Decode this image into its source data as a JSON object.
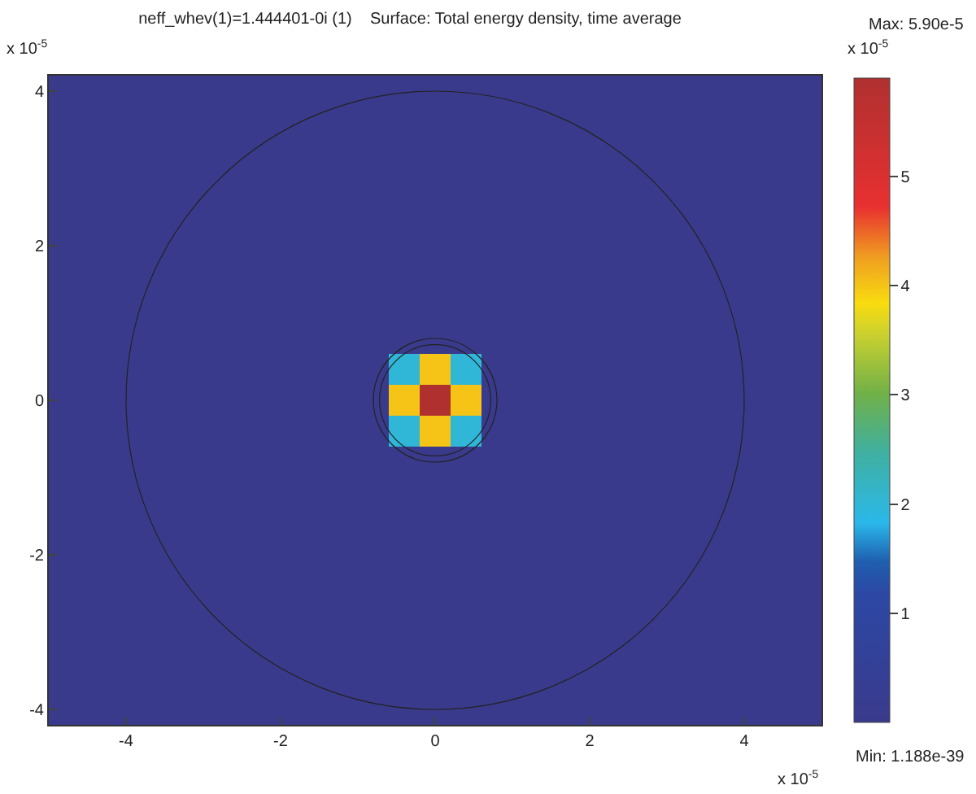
{
  "chart_data": {
    "type": "heatmap",
    "title": "neff_whev(1)=1.444401-0i (1)    Surface: Total energy density, time average",
    "categories": [
      null,
      null,
      "-4",
      null,
      null,
      null,
      null,
      "-2",
      null,
      null,
      null,
      null,
      "0",
      null,
      null,
      null,
      null,
      "2",
      null,
      null,
      null,
      null,
      "4",
      null,
      null
    ],
    "y_categories": [
      "4",
      null,
      null,
      null,
      null,
      "2",
      null,
      null,
      null,
      null,
      "0",
      null,
      null,
      null,
      null,
      "-2",
      null,
      null,
      null,
      null,
      "-4"
    ],
    "cells": [
      [
        0,
        0,
        0,
        0,
        0,
        0,
        0,
        0,
        0,
        0,
        0,
        0,
        0,
        0,
        0,
        0,
        0,
        0,
        0,
        0,
        0,
        0,
        0,
        0,
        0
      ],
      [
        0,
        0,
        0,
        0,
        0,
        0,
        0,
        0,
        0,
        0,
        0,
        0,
        0,
        0,
        0,
        0,
        0,
        0,
        0,
        0,
        0,
        0,
        0,
        0,
        0
      ],
      [
        0,
        0,
        0,
        0,
        0,
        0,
        0,
        0,
        0,
        0,
        0,
        0,
        0,
        0,
        0,
        0,
        0,
        0,
        0,
        0,
        0,
        0,
        0,
        0,
        0
      ],
      [
        0,
        0,
        0,
        0,
        0,
        0,
        0,
        0,
        0,
        0,
        0,
        0,
        0,
        0,
        0,
        0,
        0,
        0,
        0,
        0,
        0,
        0,
        0,
        0,
        0
      ],
      [
        0,
        0,
        0,
        0,
        0,
        0,
        0,
        0,
        0,
        0,
        0,
        0,
        0,
        0,
        0,
        0,
        0,
        0,
        0,
        0,
        0,
        0,
        0,
        0,
        0
      ],
      [
        0,
        0,
        0,
        0,
        0,
        0,
        0,
        0,
        0,
        0,
        0,
        0,
        0,
        0,
        0,
        0,
        0,
        0,
        0,
        0,
        0,
        0,
        0,
        0,
        0
      ],
      [
        0,
        0,
        0,
        0,
        0,
        0,
        0,
        0,
        0,
        0,
        0,
        0,
        0,
        0,
        0,
        0,
        0,
        0,
        0,
        0,
        0,
        0,
        0,
        0,
        0
      ],
      [
        0,
        0,
        0,
        0,
        0,
        0,
        0,
        0,
        0,
        0,
        0,
        0,
        0,
        0,
        0,
        0,
        0,
        0,
        0,
        0,
        0,
        0,
        0,
        0,
        0
      ],
      [
        0,
        0,
        0,
        0,
        0,
        0,
        0,
        0,
        0,
        0,
        0,
        0,
        0,
        0,
        0,
        0,
        0,
        0,
        0,
        0,
        0,
        0,
        0,
        0,
        0
      ],
      [
        0,
        0,
        0,
        0,
        0,
        0,
        0,
        0,
        0,
        0,
        0,
        2.0,
        4.0,
        2.0,
        0,
        0,
        0,
        0,
        0,
        0,
        0,
        0,
        0,
        0,
        0
      ],
      [
        0,
        0,
        0,
        0,
        0,
        0,
        0,
        0,
        0,
        0,
        0,
        4.0,
        5.9,
        4.0,
        0,
        0,
        0,
        0,
        0,
        0,
        0,
        0,
        0,
        0,
        0
      ],
      [
        0,
        0,
        0,
        0,
        0,
        0,
        0,
        0,
        0,
        0,
        0,
        2.0,
        4.0,
        2.0,
        0,
        0,
        0,
        0,
        0,
        0,
        0,
        0,
        0,
        0,
        0
      ],
      [
        0,
        0,
        0,
        0,
        0,
        0,
        0,
        0,
        0,
        0,
        0,
        0,
        0,
        0,
        0,
        0,
        0,
        0,
        0,
        0,
        0,
        0,
        0,
        0,
        0
      ],
      [
        0,
        0,
        0,
        0,
        0,
        0,
        0,
        0,
        0,
        0,
        0,
        0,
        0,
        0,
        0,
        0,
        0,
        0,
        0,
        0,
        0,
        0,
        0,
        0,
        0
      ],
      [
        0,
        0,
        0,
        0,
        0,
        0,
        0,
        0,
        0,
        0,
        0,
        0,
        0,
        0,
        0,
        0,
        0,
        0,
        0,
        0,
        0,
        0,
        0,
        0,
        0
      ],
      [
        0,
        0,
        0,
        0,
        0,
        0,
        0,
        0,
        0,
        0,
        0,
        0,
        0,
        0,
        0,
        0,
        0,
        0,
        0,
        0,
        0,
        0,
        0,
        0,
        0
      ],
      [
        0,
        0,
        0,
        0,
        0,
        0,
        0,
        0,
        0,
        0,
        0,
        0,
        0,
        0,
        0,
        0,
        0,
        0,
        0,
        0,
        0,
        0,
        0,
        0,
        0
      ],
      [
        0,
        0,
        0,
        0,
        0,
        0,
        0,
        0,
        0,
        0,
        0,
        0,
        0,
        0,
        0,
        0,
        0,
        0,
        0,
        0,
        0,
        0,
        0,
        0,
        0
      ],
      [
        0,
        0,
        0,
        0,
        0,
        0,
        0,
        0,
        0,
        0,
        0,
        0,
        0,
        0,
        0,
        0,
        0,
        0,
        0,
        0,
        0,
        0,
        0,
        0,
        0
      ],
      [
        0,
        0,
        0,
        0,
        0,
        0,
        0,
        0,
        0,
        0,
        0,
        0,
        0,
        0,
        0,
        0,
        0,
        0,
        0,
        0,
        0,
        0,
        0,
        0,
        0
      ],
      [
        0,
        0,
        0,
        0,
        0,
        0,
        0,
        0,
        0,
        0,
        0,
        0,
        0,
        0,
        0,
        0,
        0,
        0,
        0,
        0,
        0,
        0,
        0,
        0,
        0
      ]
    ],
    "clim": [
      0,
      5.9
    ],
    "cticks": [
      1,
      2,
      3,
      4,
      5
    ],
    "annotations": [
      "x 10$^{-5}$",
      "x 10$^{-5}$",
      "x 10$^{-5}$",
      "Max: 5.90e-5",
      "Min: 1.188e-39"
    ]
  }
}
